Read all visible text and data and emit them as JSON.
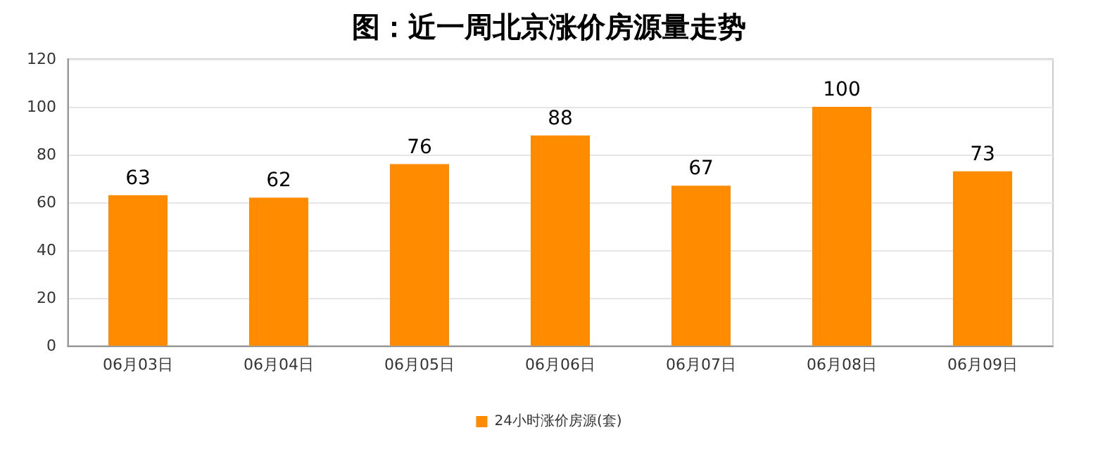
{
  "chart_data": {
    "type": "bar",
    "title": "图：近一周北京涨价房源量走势",
    "categories": [
      "06月03日",
      "06月04日",
      "06月05日",
      "06月06日",
      "06月07日",
      "06月08日",
      "06月09日"
    ],
    "series": [
      {
        "name": "24小时涨价房源(套)",
        "color": "#ff8c00",
        "values": [
          63,
          62,
          76,
          88,
          67,
          100,
          73
        ]
      }
    ],
    "ylim": [
      0,
      120
    ],
    "yticks": [
      0,
      20,
      40,
      60,
      80,
      100,
      120
    ],
    "grid": "y",
    "legend": "bottom",
    "data_labels": true
  }
}
